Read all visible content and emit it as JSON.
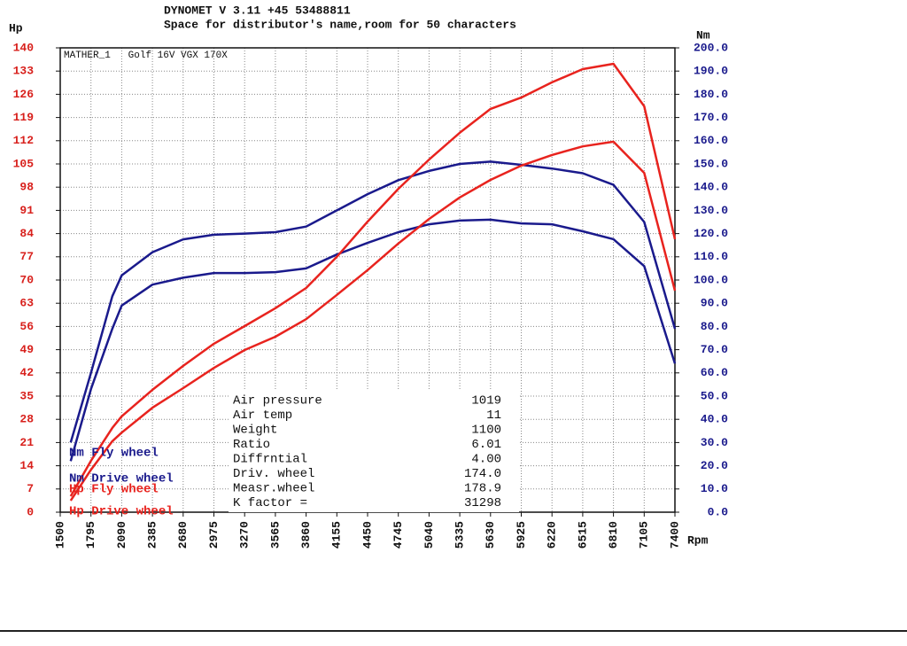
{
  "chart_data": {
    "type": "line",
    "title": "DYNOMET V 3.11 +45 53488811",
    "subtitle": "Space for distributor's name,room for 50 characters",
    "annotation": "MATHER_1   Golf 16V VGX 170X",
    "ylabel": "Hp",
    "y2label": "Nm",
    "xlabel": "Rpm",
    "x": [
      1600,
      1795,
      2000,
      2090,
      2385,
      2680,
      2975,
      3270,
      3565,
      3860,
      4155,
      4450,
      4745,
      5040,
      5335,
      5630,
      5925,
      6220,
      6515,
      6810,
      7105,
      7400
    ],
    "series": [
      {
        "name": "Nm Fly wheel",
        "color": "#1a1a8c",
        "axis": "y2",
        "values": [
          30,
          60,
          93,
          102,
          112,
          117.5,
          119.5,
          120,
          120.6,
          123,
          130,
          137,
          143,
          147,
          150,
          151,
          149.6,
          148,
          146,
          141,
          125,
          79
        ]
      },
      {
        "name": "Nm Drive wheel",
        "color": "#1a1a8c",
        "axis": "y2",
        "values": [
          22,
          53,
          79,
          89,
          98,
          101,
          103,
          103,
          103.4,
          105,
          111,
          116,
          120.6,
          124,
          125.6,
          126,
          124.4,
          124,
          121,
          117.6,
          106,
          64
        ]
      },
      {
        "name": "Hp Fly wheel",
        "color": "#e8231e",
        "values": [
          4.8,
          15.5,
          25.4,
          28.9,
          36.9,
          44.1,
          50.8,
          56.1,
          61.5,
          67.6,
          77,
          87.6,
          97.5,
          106.3,
          114.4,
          121.6,
          125,
          129.6,
          133.6,
          135.2,
          122.4,
          82.3
        ]
      },
      {
        "name": "Hp Drive wheel",
        "color": "#e8231e",
        "values": [
          3.5,
          12.8,
          21.4,
          24,
          31.5,
          37.4,
          43.5,
          48.9,
          52.9,
          58.2,
          65.5,
          73,
          81,
          88.4,
          94.9,
          100.2,
          104.5,
          107.7,
          110.3,
          111.7,
          102.3,
          66.8
        ]
      }
    ],
    "xlim": [
      1500,
      7400
    ],
    "xticks": [
      1500,
      1795,
      2090,
      2385,
      2680,
      2975,
      3270,
      3565,
      3860,
      4155,
      4450,
      4745,
      5040,
      5335,
      5630,
      5925,
      6220,
      6515,
      6810,
      7105,
      7400
    ],
    "ylim": [
      0,
      140
    ],
    "yticks": [
      0,
      7,
      14,
      21,
      28,
      35,
      42,
      49,
      56,
      63,
      70,
      77,
      84,
      91,
      98,
      105,
      112,
      119,
      126,
      133,
      140
    ],
    "y2lim": [
      0,
      200
    ],
    "y2ticks": [
      {
        "value": 0,
        "label": "0.0"
      },
      {
        "value": 10,
        "label": "10.0"
      },
      {
        "value": 20,
        "label": "20.0"
      },
      {
        "value": 30,
        "label": "30.0"
      },
      {
        "value": 40,
        "label": "40.0"
      },
      {
        "value": 50,
        "label": "50.0"
      },
      {
        "value": 60,
        "label": "60.0"
      },
      {
        "value": 70,
        "label": "70.0"
      },
      {
        "value": 80,
        "label": "80.0"
      },
      {
        "value": 90,
        "label": "90.0"
      },
      {
        "value": 100,
        "label": "100.0"
      },
      {
        "value": 110,
        "label": "110.0"
      },
      {
        "value": 120,
        "label": "120.0"
      },
      {
        "value": 130,
        "label": "130.0"
      },
      {
        "value": 140,
        "label": "140.0"
      },
      {
        "value": 150,
        "label": "150.0"
      },
      {
        "value": 160,
        "label": "160.0"
      },
      {
        "value": 170,
        "label": "170.0"
      },
      {
        "value": 180,
        "label": "180.0"
      },
      {
        "value": 190,
        "label": "190.0"
      },
      {
        "value": 200,
        "label": "200.0"
      }
    ],
    "grid": true
  },
  "info": {
    "rows": [
      [
        "Air pressure",
        "1019"
      ],
      [
        "Air temp",
        "11"
      ],
      [
        "Weight",
        "1100"
      ],
      [
        "Ratio",
        "6.01"
      ],
      [
        "Diffrntial",
        "4.00"
      ],
      [
        "Driv. wheel",
        "174.0"
      ],
      [
        "Measr.wheel",
        "178.9"
      ],
      [
        "K factor =",
        "31298"
      ]
    ]
  }
}
